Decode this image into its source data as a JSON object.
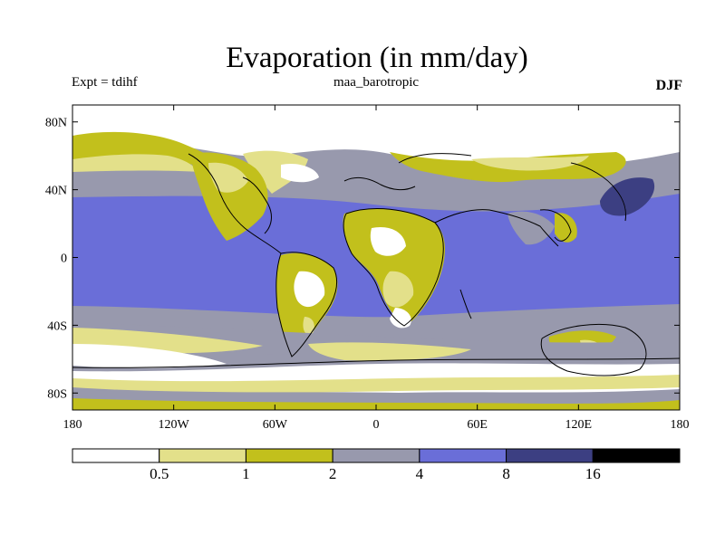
{
  "title": "Evaporation (in mm/day)",
  "subtitle_left": "Expt = tdihf",
  "subtitle_center": "maa_barotropic",
  "subtitle_right": "DJF",
  "lon_ticks": [
    {
      "value": -180,
      "label": "180"
    },
    {
      "value": -120,
      "label": "120W"
    },
    {
      "value": -60,
      "label": "60W"
    },
    {
      "value": 0,
      "label": "0"
    },
    {
      "value": 60,
      "label": "60E"
    },
    {
      "value": 120,
      "label": "120E"
    },
    {
      "value": 180,
      "label": "180"
    }
  ],
  "lat_ticks": [
    {
      "value": 80,
      "label": "80N"
    },
    {
      "value": 40,
      "label": "40N"
    },
    {
      "value": 0,
      "label": "0"
    },
    {
      "value": -40,
      "label": "40S"
    },
    {
      "value": -80,
      "label": "80S"
    }
  ],
  "lon_range": [
    -180,
    180
  ],
  "lat_range": [
    -90,
    90
  ],
  "colorbar": {
    "levels": [
      "0.5",
      "1",
      "2",
      "4",
      "8",
      "16"
    ],
    "colors": [
      "#ffffff",
      "#e3e08a",
      "#c2c01c",
      "#9899ad",
      "#6a6ed8",
      "#3c3f82",
      "#000000"
    ]
  }
}
